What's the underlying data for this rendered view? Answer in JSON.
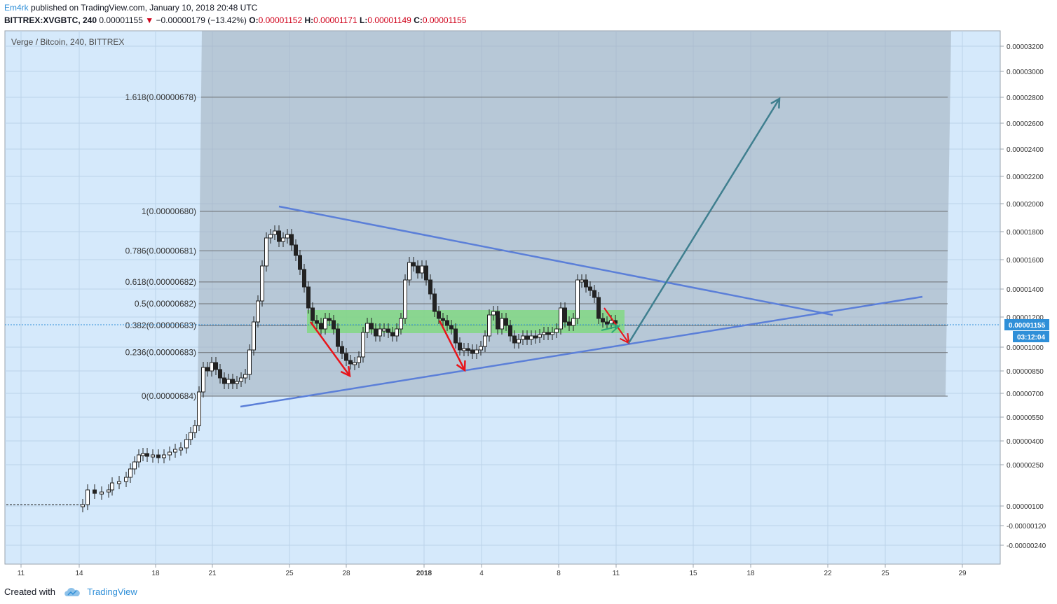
{
  "header": {
    "author": "Em4rk",
    "published_text": "published on TradingView.com, January 10, 2018 20:48 UTC",
    "symbol": "BITTREX:XVGBTC, 240",
    "last": "0.00001155",
    "change": "−0.00000179 (−13.42%)",
    "open_label": "O:",
    "open": "0.00001152",
    "high_label": "H:",
    "high": "0.00001171",
    "low_label": "L:",
    "low": "0.00001149",
    "close_label": "C:",
    "close": "0.00001155",
    "down_color": "#d0021b"
  },
  "footer": {
    "created_with": "Created with",
    "brand": "TradingView",
    "icon": "tradingview-cloud-icon"
  },
  "chart_data": {
    "type": "candlestick",
    "title": "Verge / Bitcoin, 240, BITTREX",
    "bg_color": "#d5e9fb",
    "y_tick_labels": [
      "0.00003200",
      "0.00003000",
      "0.00002800",
      "0.00002600",
      "0.00002400",
      "0.00002200",
      "0.00002000",
      "0.00001800",
      "0.00001600",
      "0.00001400",
      "0.00001200",
      "0.00001000",
      "0.00000850",
      "0.00000700",
      "0.00000550",
      "0.00000400",
      "0.00000250",
      "0.00000100",
      "-0.00000120",
      "-0.00000240"
    ],
    "x_tick_labels": [
      "11",
      "14",
      "18",
      "21",
      "25",
      "28",
      "2018",
      "4",
      "8",
      "11",
      "15",
      "18",
      "22",
      "25",
      "29"
    ],
    "price_label": "0.00001155",
    "countdown_label": "03:12:04",
    "fib_levels": [
      {
        "label": "1.618(0.00000678)",
        "ratio": 1.618
      },
      {
        "label": "1(0.00000680)",
        "ratio": 1
      },
      {
        "label": "0.786(0.00000681)",
        "ratio": 0.786
      },
      {
        "label": "0.618(0.00000682)",
        "ratio": 0.618
      },
      {
        "label": "0.5(0.00000682)",
        "ratio": 0.5
      },
      {
        "label": "0.382(0.00000683)",
        "ratio": 0.382
      },
      {
        "label": "0.236(0.00000683)",
        "ratio": 0.236
      },
      {
        "label": "0(0.00000684)",
        "ratio": 0
      }
    ],
    "zone_color": "#7ed97e",
    "trend_color": "#5b7fd8",
    "down_arrow_color": "#e8141a",
    "up_arrow_color": "#3f7f8f"
  }
}
